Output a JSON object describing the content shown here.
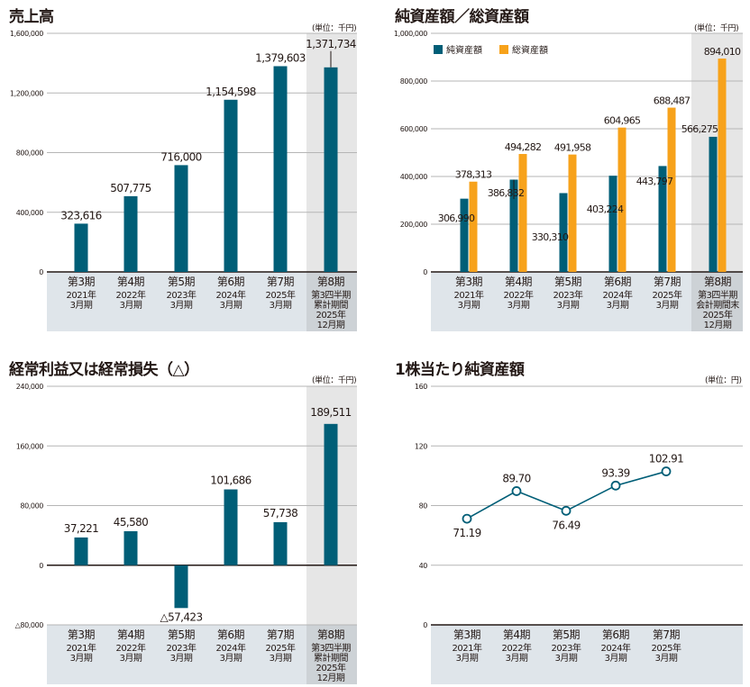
{
  "colors": {
    "net_assets": "#005e77",
    "total_assets": "#f7a21b",
    "grid": "#b5b5b5",
    "axis": "#231815",
    "category_band": "#dfe5ea",
    "category_band_highlight": "#cdd2d6",
    "highlight_column": "#e6e6e6"
  },
  "chart_data": [
    {
      "id": "sales",
      "type": "bar",
      "title": "売上高",
      "unit": "(単位：千円)",
      "ylim": [
        0,
        1600000
      ],
      "yticks": [
        0,
        400000,
        800000,
        1200000,
        1600000
      ],
      "ytick_labels": [
        "0",
        "400,000",
        "800,000",
        "1,200,000",
        "1,600,000"
      ],
      "grid": true,
      "categories": [
        [
          "第3期",
          "2021年",
          "3月期"
        ],
        [
          "第4期",
          "2022年",
          "3月期"
        ],
        [
          "第5期",
          "2023年",
          "3月期"
        ],
        [
          "第6期",
          "2024年",
          "3月期"
        ],
        [
          "第7期",
          "2025年",
          "3月期"
        ],
        [
          "第8期",
          "第3四半期",
          "累計期間",
          "2025年",
          "12月期"
        ]
      ],
      "highlight_index": 5,
      "series": [
        {
          "name": "売上高",
          "values": [
            323616,
            507775,
            716000,
            1154598,
            1379603,
            1371734
          ],
          "labels": [
            "323,616",
            "507,775",
            "716,000",
            "1,154,598",
            "1,379,603",
            "1,371,734"
          ]
        }
      ]
    },
    {
      "id": "assets",
      "type": "bar",
      "title": "純資産額／総資産額",
      "unit": "(単位：千円)",
      "ylim": [
        0,
        1000000
      ],
      "yticks": [
        0,
        200000,
        400000,
        600000,
        800000,
        1000000
      ],
      "ytick_labels": [
        "0",
        "200,000",
        "400,000",
        "600,000",
        "800,000",
        "1,000,000"
      ],
      "grid": true,
      "legend": [
        "純資産額",
        "総資産額"
      ],
      "legend_position": "top-left",
      "categories": [
        [
          "第3期",
          "2021年",
          "3月期"
        ],
        [
          "第4期",
          "2022年",
          "3月期"
        ],
        [
          "第5期",
          "2023年",
          "3月期"
        ],
        [
          "第6期",
          "2024年",
          "3月期"
        ],
        [
          "第7期",
          "2025年",
          "3月期"
        ],
        [
          "第8期",
          "第3四半期",
          "会計期間末",
          "2025年",
          "12月期"
        ]
      ],
      "highlight_index": 5,
      "series": [
        {
          "name": "純資産額",
          "values": [
            306990,
            386832,
            330310,
            403224,
            443797,
            566275
          ],
          "labels": [
            "306,990",
            "386,832",
            "330,310",
            "403,224",
            "443,797",
            "566,275"
          ]
        },
        {
          "name": "総資産額",
          "values": [
            378313,
            494282,
            491958,
            604965,
            688487,
            894010
          ],
          "labels": [
            "378,313",
            "494,282",
            "491,958",
            "604,965",
            "688,487",
            "894,010"
          ]
        }
      ]
    },
    {
      "id": "ordinary_income",
      "type": "bar",
      "title": "経常利益又は経常損失（△）",
      "unit": "(単位：千円)",
      "ylim": [
        -80000,
        240000
      ],
      "yticks": [
        -80000,
        0,
        80000,
        160000,
        240000
      ],
      "ytick_labels": [
        "△80,000",
        "0",
        "80,000",
        "160,000",
        "240,000"
      ],
      "grid": true,
      "categories": [
        [
          "第3期",
          "2021年",
          "3月期"
        ],
        [
          "第4期",
          "2022年",
          "3月期"
        ],
        [
          "第5期",
          "2023年",
          "3月期"
        ],
        [
          "第6期",
          "2024年",
          "3月期"
        ],
        [
          "第7期",
          "2025年",
          "3月期"
        ],
        [
          "第8期",
          "第3四半期",
          "累計期間",
          "2025年",
          "12月期"
        ]
      ],
      "highlight_index": 5,
      "series": [
        {
          "name": "経常利益又は経常損失",
          "values": [
            37221,
            45580,
            -57423,
            101686,
            57738,
            189511
          ],
          "labels": [
            "37,221",
            "45,580",
            "△57,423",
            "101,686",
            "57,738",
            "189,511"
          ]
        }
      ]
    },
    {
      "id": "bps",
      "type": "line",
      "title": "1株当たり純資産額",
      "unit": "(単位：円)",
      "ylim": [
        0,
        160
      ],
      "yticks": [
        0,
        40,
        80,
        120,
        160
      ],
      "ytick_labels": [
        "0",
        "40",
        "80",
        "120",
        "160"
      ],
      "grid": true,
      "categories": [
        [
          "第3期",
          "2021年",
          "3月期"
        ],
        [
          "第4期",
          "2022年",
          "3月期"
        ],
        [
          "第5期",
          "2023年",
          "3月期"
        ],
        [
          "第6期",
          "2024年",
          "3月期"
        ],
        [
          "第7期",
          "2025年",
          "3月期"
        ]
      ],
      "series": [
        {
          "name": "1株当たり純資産額",
          "values": [
            71.19,
            89.7,
            76.49,
            93.39,
            102.91
          ],
          "labels": [
            "71.19",
            "89.70",
            "76.49",
            "93.39",
            "102.91"
          ]
        }
      ]
    }
  ]
}
